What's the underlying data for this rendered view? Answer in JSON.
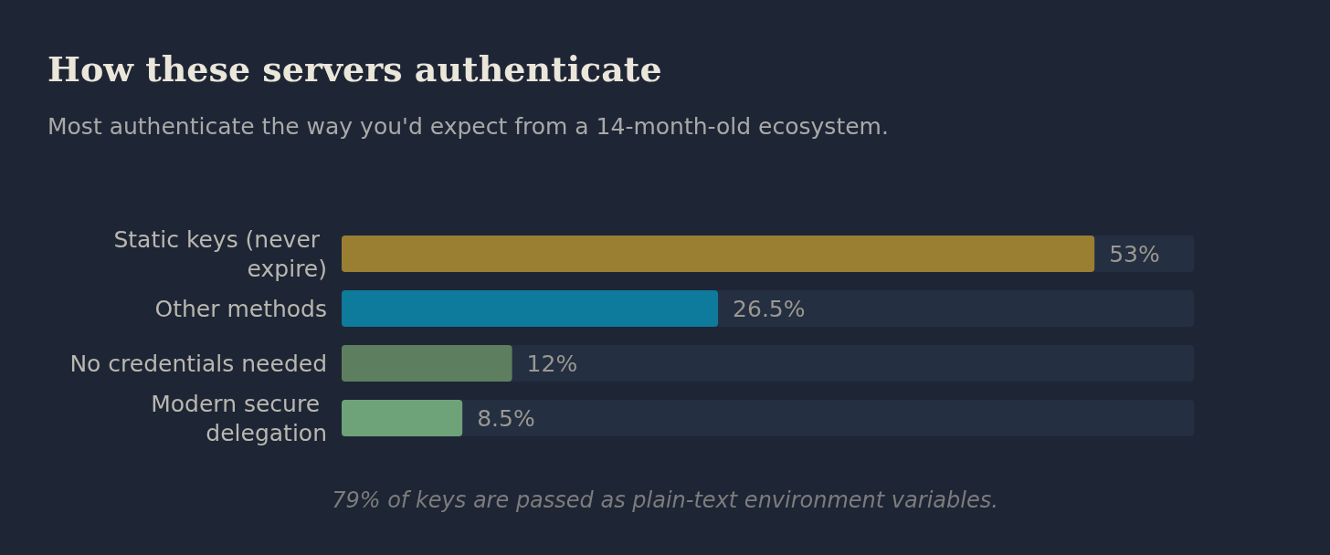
{
  "chart_data": {
    "type": "bar",
    "orientation": "horizontal",
    "title": "How these servers authenticate",
    "subtitle": "Most authenticate the way you'd expect from a 14-month-old ecosystem.",
    "categories": [
      "Static keys (never expire)",
      "Other methods",
      "No credentials needed",
      "Modern secure delegation"
    ],
    "values": [
      53,
      26.5,
      12,
      8.5
    ],
    "colors": [
      "#9a7f33",
      "#0e7a9c",
      "#5e7f5f",
      "#6ea37a"
    ],
    "value_labels": [
      "53%",
      "26.5%",
      "12%",
      "8.5%"
    ],
    "grid": false,
    "annotations": [
      "79% of keys are passed as plain-text environment variables."
    ]
  }
}
